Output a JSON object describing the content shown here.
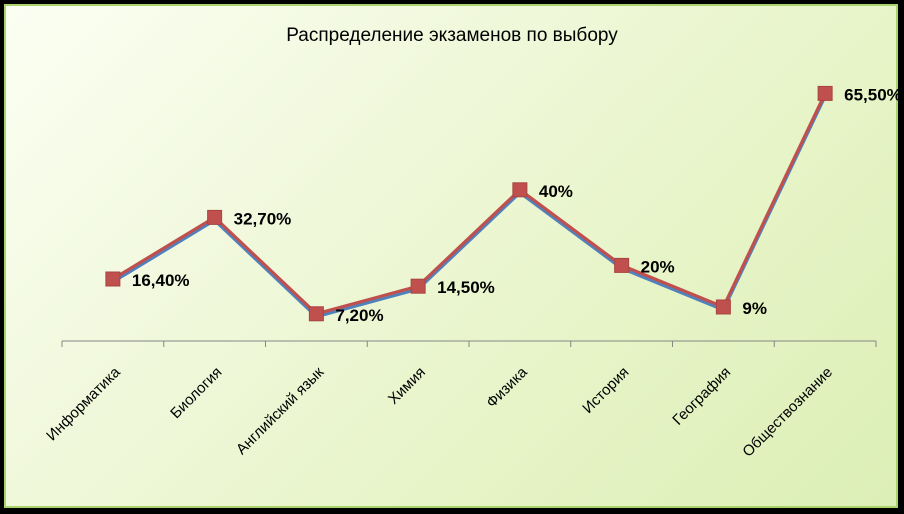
{
  "chart_data": {
    "type": "line",
    "title": "Распределение экзаменов по выбору",
    "categories": [
      "Информатика",
      "Биология",
      "Английский язык",
      "Химия",
      "Физика",
      "История",
      "География",
      "Обществознание"
    ],
    "series": [
      {
        "values": [
          16.4,
          32.7,
          7.2,
          14.5,
          40,
          20,
          9,
          65.5
        ],
        "color": "#4f81bd"
      },
      {
        "values": [
          16.4,
          32.7,
          7.2,
          14.5,
          40,
          20,
          9,
          65.5
        ],
        "color": "#c0504d"
      }
    ],
    "data_labels": [
      "16,40%",
      "32,70%",
      "7,20%",
      "14,50%",
      "40%",
      "20%",
      "9%",
      "65,50%"
    ],
    "ylim": [
      0,
      100
    ],
    "grid": false,
    "legend": "none"
  },
  "colors": {
    "frame_border": "#a9d46b",
    "axis": "#868686"
  }
}
